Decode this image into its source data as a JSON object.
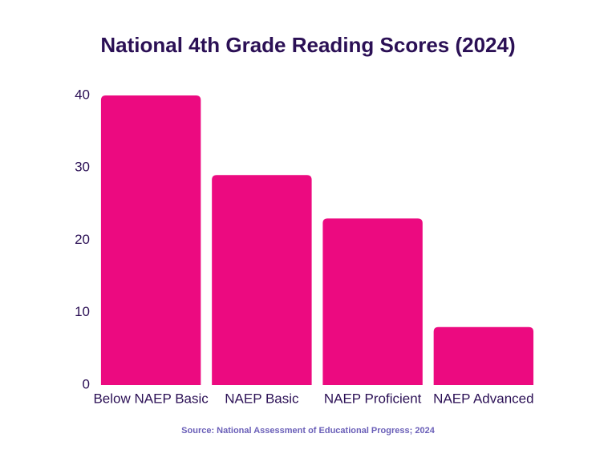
{
  "chart_data": {
    "type": "bar",
    "title": "National 4th Grade Reading Scores (2024)",
    "categories": [
      "Below NAEP Basic",
      "NAEP Basic",
      "NAEP Proficient",
      "NAEP Advanced"
    ],
    "values": [
      40,
      29,
      23,
      8
    ],
    "color": "#ec0a80",
    "ylim": [
      0,
      40
    ],
    "yticks": [
      0,
      10,
      20,
      30,
      40
    ],
    "grid": false,
    "source": "Source: National Assessment of Educational Progress; 2024"
  }
}
